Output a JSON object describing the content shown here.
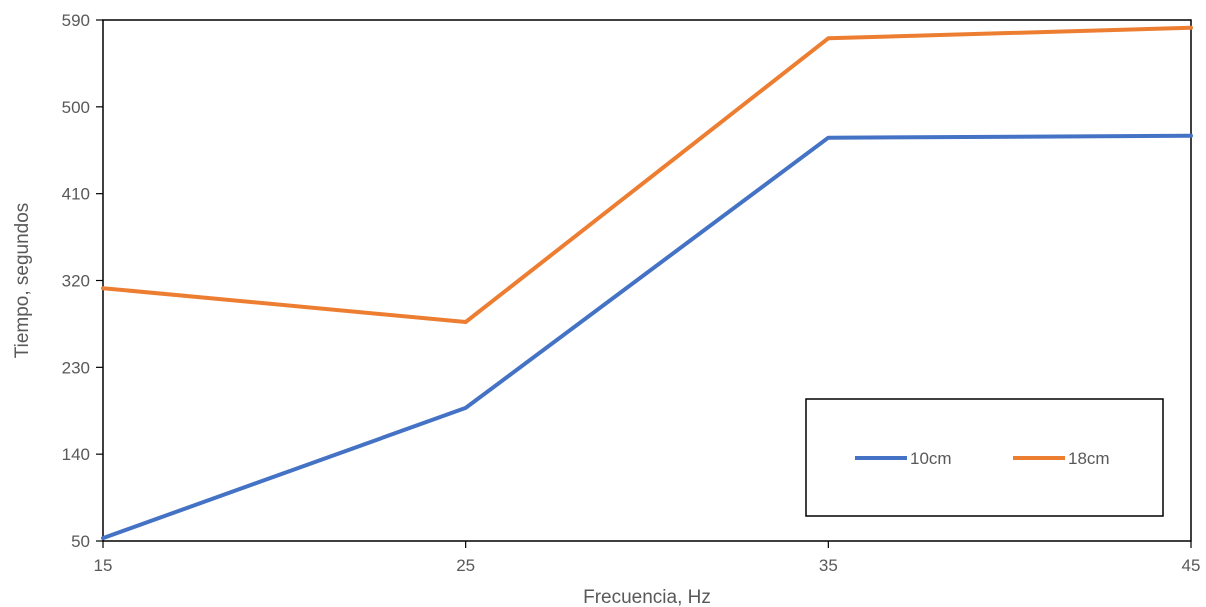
{
  "chart_data": {
    "type": "line",
    "x": [
      15,
      25,
      35,
      45
    ],
    "series": [
      {
        "name": "10cm",
        "values": [
          53,
          188,
          468,
          470
        ],
        "color": "#4472C4"
      },
      {
        "name": "18cm",
        "values": [
          312,
          277,
          571,
          582
        ],
        "color": "#ED7D31"
      }
    ],
    "xlabel": "Frecuencia, Hz",
    "ylabel": "Tiempo, segundos",
    "xticks": [
      15,
      25,
      35,
      45
    ],
    "yticks": [
      50,
      140,
      230,
      320,
      410,
      500,
      590
    ],
    "xlim": [
      15,
      45
    ],
    "ylim": [
      50,
      590
    ],
    "grid": false,
    "legend_position": "bottom-right"
  }
}
